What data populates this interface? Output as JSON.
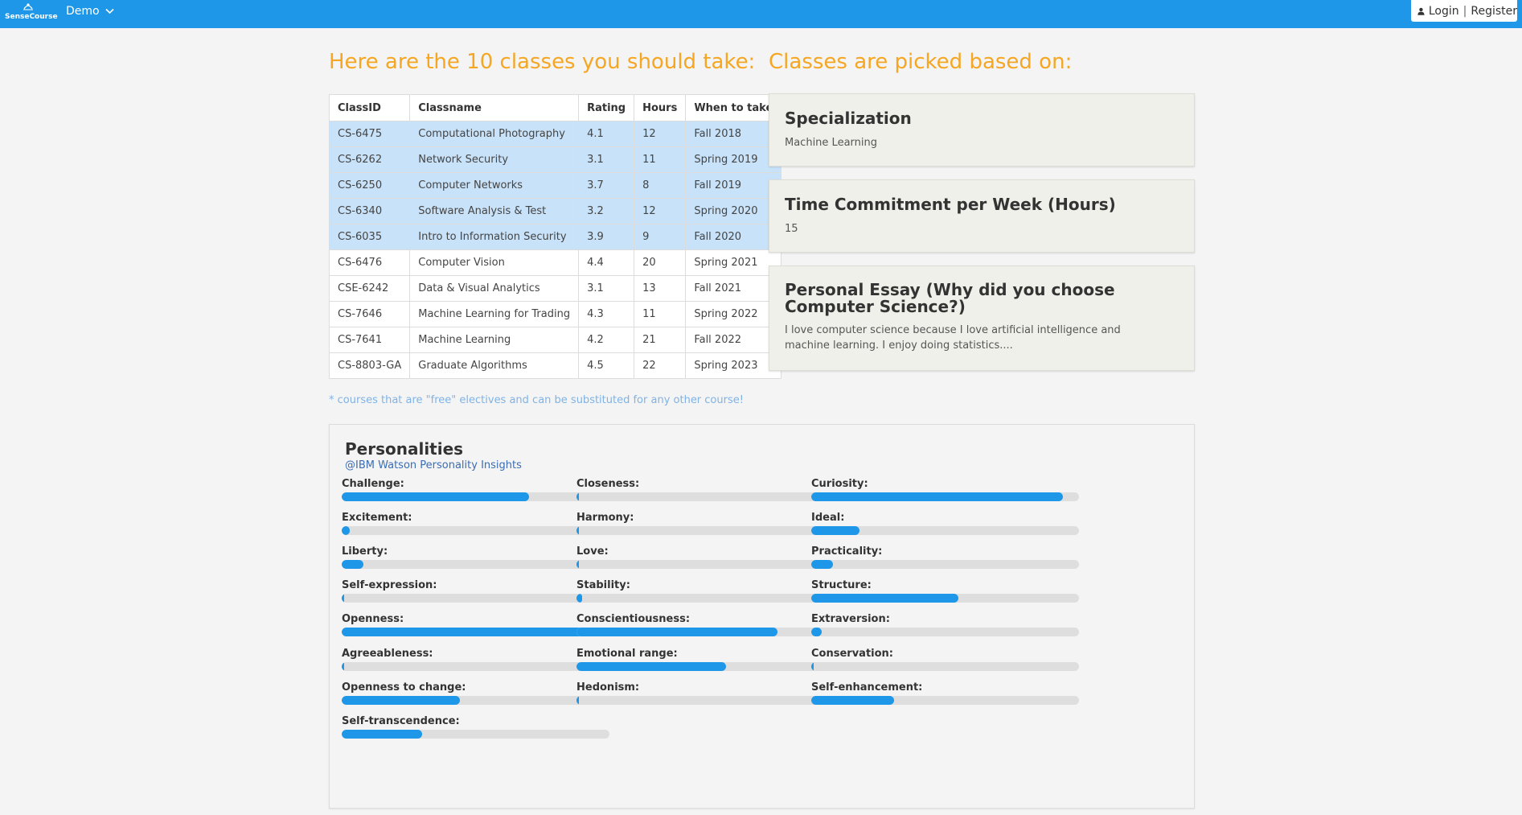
{
  "header": {
    "logo_text": "SenseCourse",
    "demo_label": "Demo",
    "login_label": "Login",
    "separator": "|",
    "register_label": "Register",
    "bar_color": "#1e97e8"
  },
  "main": {
    "classes_heading": "Here are the 10 classes you should take:",
    "criteria_heading": "Classes are picked based on:",
    "table": {
      "headers": [
        "ClassID",
        "Classname",
        "Rating",
        "Hours",
        "When to take"
      ],
      "rows": [
        {
          "id": "CS-6475",
          "name": "Computational Photography",
          "rating": "4.1",
          "hours": "12",
          "when": "Fall 2018",
          "highlight": true
        },
        {
          "id": "CS-6262",
          "name": "Network Security",
          "rating": "3.1",
          "hours": "11",
          "when": "Spring 2019",
          "highlight": true
        },
        {
          "id": "CS-6250",
          "name": "Computer Networks",
          "rating": "3.7",
          "hours": "8",
          "when": "Fall 2019",
          "highlight": true
        },
        {
          "id": "CS-6340",
          "name": "Software Analysis & Test",
          "rating": "3.2",
          "hours": "12",
          "when": "Spring 2020",
          "highlight": true
        },
        {
          "id": "CS-6035",
          "name": "Intro to Information Security",
          "rating": "3.9",
          "hours": "9",
          "when": "Fall 2020",
          "highlight": true
        },
        {
          "id": "CS-6476",
          "name": "Computer Vision",
          "rating": "4.4",
          "hours": "20",
          "when": "Spring 2021",
          "highlight": false
        },
        {
          "id": "CSE-6242",
          "name": "Data & Visual Analytics",
          "rating": "3.1",
          "hours": "13",
          "when": "Fall 2021",
          "highlight": false
        },
        {
          "id": "CS-7646",
          "name": "Machine Learning for Trading",
          "rating": "4.3",
          "hours": "11",
          "when": "Spring 2022",
          "highlight": false
        },
        {
          "id": "CS-7641",
          "name": "Machine Learning",
          "rating": "4.2",
          "hours": "21",
          "when": "Fall 2022",
          "highlight": false
        },
        {
          "id": "CS-8803-GA",
          "name": "Graduate Algorithms",
          "rating": "4.5",
          "hours": "22",
          "when": "Spring 2023",
          "highlight": false
        }
      ],
      "highlight_color": "#c8e2f9"
    },
    "note": "* courses that are \"free\" electives and can be substituted for any other course!",
    "cards": {
      "specialization": {
        "title": "Specialization",
        "value": "Machine Learning"
      },
      "time": {
        "title": "Time Commitment per Week (Hours)",
        "value": "15"
      },
      "essay": {
        "title": "Personal Essay (Why did you choose Computer Science?)",
        "value": "I love computer science because I love artificial intelligence and machine learning. I enjoy doing statistics...."
      }
    }
  },
  "personalities": {
    "title": "Personalities",
    "subtitle": "@IBM Watson Personality Insights",
    "bar_color": "#1e97e8",
    "traits": [
      {
        "label": "Challenge:",
        "value": 0.7
      },
      {
        "label": "Closeness:",
        "value": 0.01
      },
      {
        "label": "Curiosity:",
        "value": 0.94
      },
      {
        "label": "Excitement:",
        "value": 0.03
      },
      {
        "label": "Harmony:",
        "value": 0.01
      },
      {
        "label": "Ideal:",
        "value": 0.18
      },
      {
        "label": "Liberty:",
        "value": 0.08
      },
      {
        "label": "Love:",
        "value": 0.01
      },
      {
        "label": "Practicality:",
        "value": 0.08
      },
      {
        "label": "Self-expression:",
        "value": 0.01
      },
      {
        "label": "Stability:",
        "value": 0.02
      },
      {
        "label": "Structure:",
        "value": 0.55
      },
      {
        "label": "Openness:",
        "value": 0.99
      },
      {
        "label": "Conscientiousness:",
        "value": 0.75
      },
      {
        "label": "Extraversion:",
        "value": 0.04
      },
      {
        "label": "Agreeableness:",
        "value": 0.01
      },
      {
        "label": "Emotional range:",
        "value": 0.56
      },
      {
        "label": "Conservation:",
        "value": 0.01
      },
      {
        "label": "Openness to change:",
        "value": 0.44
      },
      {
        "label": "Hedonism:",
        "value": 0.01
      },
      {
        "label": "Self-enhancement:",
        "value": 0.31
      },
      {
        "label": "Self-transcendence:",
        "value": 0.3
      }
    ]
  }
}
